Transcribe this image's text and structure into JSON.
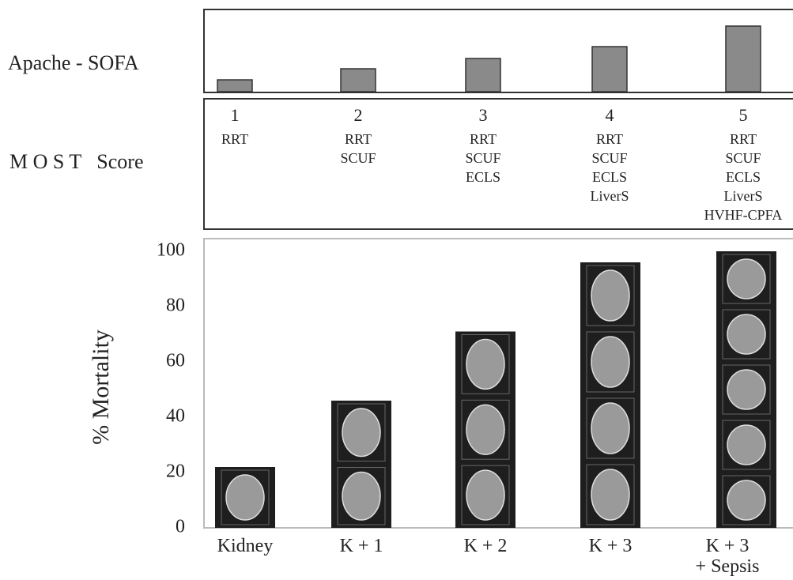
{
  "chart_data": [
    {
      "type": "bar",
      "title": "Apache - SOFA",
      "values": [
        15,
        29,
        42,
        57,
        83
      ],
      "ylim": [
        0,
        100
      ],
      "color": "#8a8a8a"
    },
    {
      "type": "bar",
      "ylabel": "% Mortality",
      "categories": [
        "Kidney",
        "K + 1",
        "K + 2",
        "K + 3",
        "K + 3\n+ Sepsis"
      ],
      "values": [
        22,
        46,
        71,
        96,
        100
      ],
      "ylim": [
        0,
        100
      ],
      "yticks": [
        0,
        20,
        40,
        60,
        80,
        100
      ],
      "color": "#1e1e1e"
    }
  ],
  "most_score": {
    "label": "M O S T   Score",
    "columns": [
      {
        "number": "1",
        "items": [
          "RRT"
        ]
      },
      {
        "number": "2",
        "items": [
          "RRT",
          "SCUF"
        ]
      },
      {
        "number": "3",
        "items": [
          "RRT",
          "SCUF",
          "ECLS"
        ]
      },
      {
        "number": "4",
        "items": [
          "RRT",
          "SCUF",
          "ECLS",
          "LiverS"
        ]
      },
      {
        "number": "5",
        "items": [
          "RRT",
          "SCUF",
          "ECLS",
          "LiverS",
          "HVHF-CPFA"
        ]
      }
    ]
  }
}
